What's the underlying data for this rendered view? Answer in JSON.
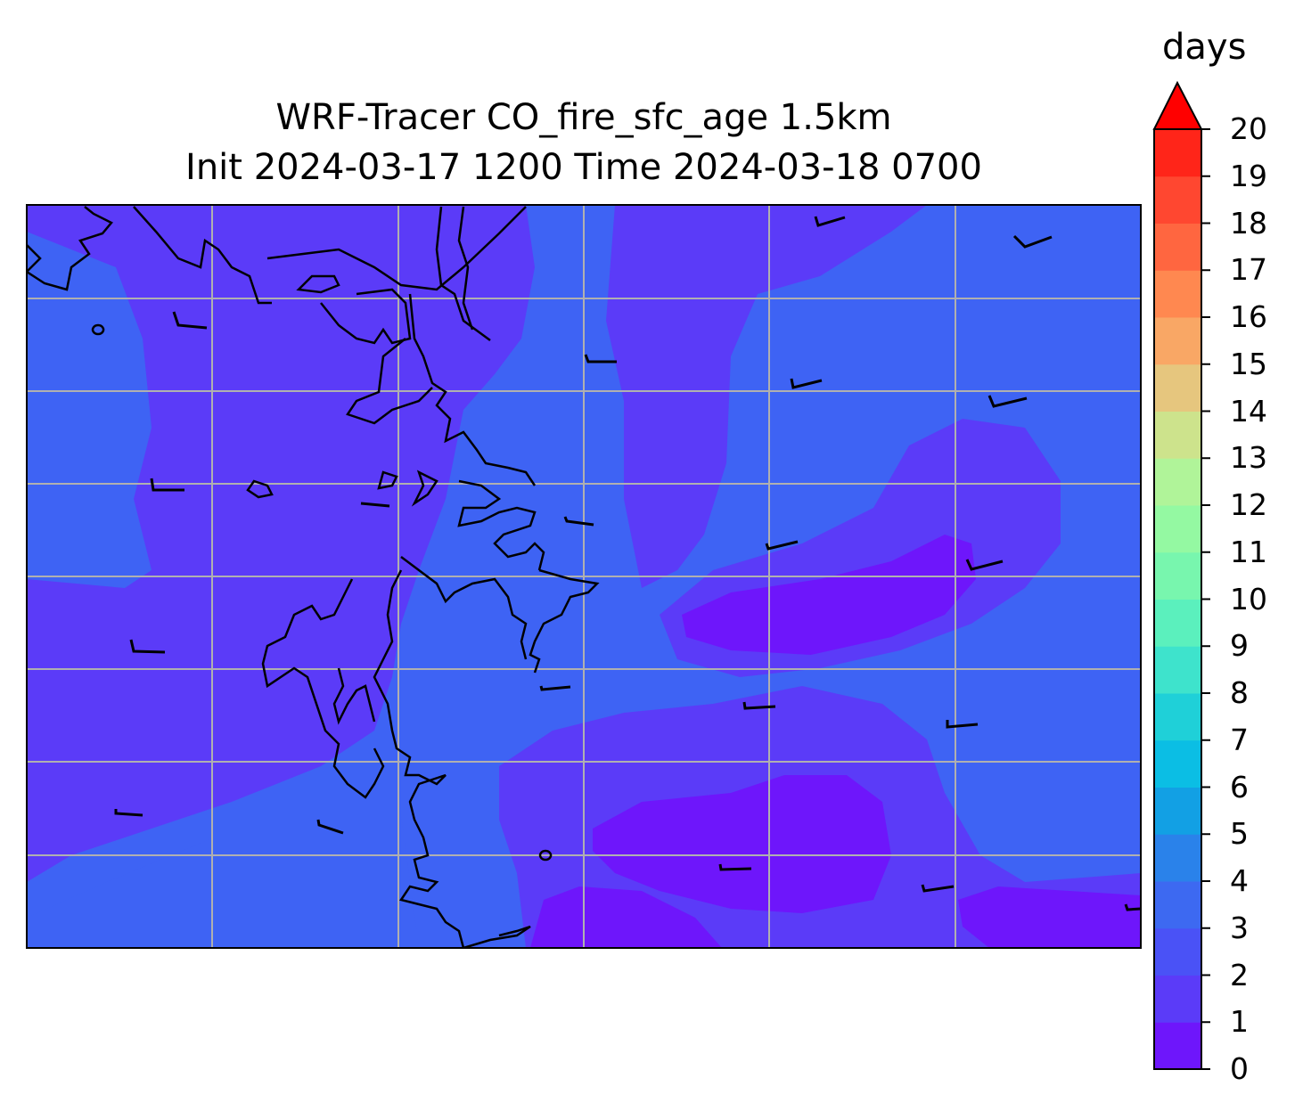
{
  "title": {
    "line1": "WRF-Tracer CO_fire_sfc_age 1.5km",
    "line2": "Init 2024-03-17 1200 Time 2024-03-18 0700"
  },
  "colorbar": {
    "unit": "days",
    "ticks": [
      "0",
      "1",
      "2",
      "3",
      "4",
      "5",
      "6",
      "7",
      "8",
      "9",
      "10",
      "11",
      "12",
      "13",
      "14",
      "15",
      "16",
      "17",
      "18",
      "19",
      "20"
    ],
    "extend": "max",
    "colors": [
      "#6e16fb",
      "#5b3bf8",
      "#4a52f6",
      "#3d69f1",
      "#2a82ea",
      "#12a0e4",
      "#0bbee4",
      "#1fd0d8",
      "#3ee3cc",
      "#5bf0bd",
      "#78f6ae",
      "#94f9a2",
      "#b0f499",
      "#cde38c",
      "#e6c67e",
      "#f9a765",
      "#ff8850",
      "#ff6640",
      "#ff4730",
      "#ff2519",
      "#ff0000"
    ]
  },
  "map": {
    "background_color": "#3e63f4",
    "gridlines": true,
    "legend_placement": "right"
  }
}
